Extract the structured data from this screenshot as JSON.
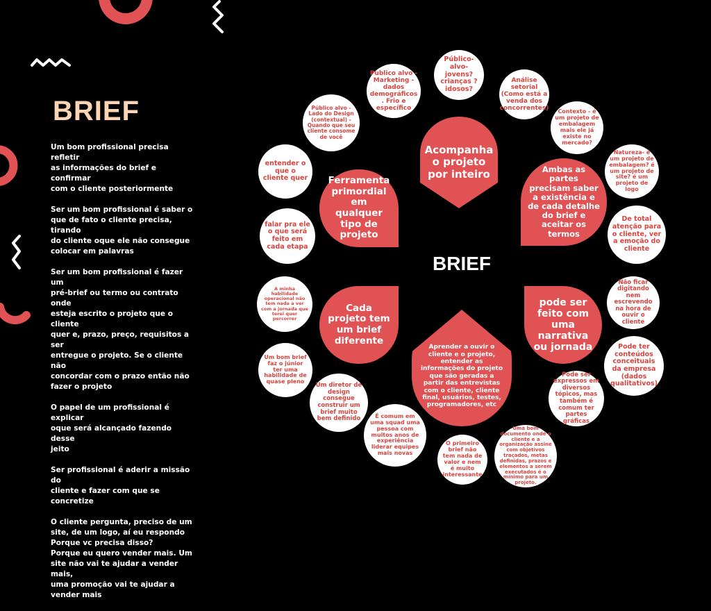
{
  "title": "BRIEF",
  "paragraphs": [
    "Um bom profissional precisa refletir\nas informações do brief e confirmar\ncom o cliente posteriormente",
    "Ser um bom profissional é saber o\nque de fato o cliente precisa, tirando\ndo cliente oque ele não consegue\ncolocar em palavras",
    "Ser um bom profissional é fazer um\npré-brief ou termo ou contrato onde\nesteja escrito o projeto que o cliente\nquer e, prazo, preço, requisitos a ser\nentregue o projeto. Se o cliente não\nconcordar com o prazo então não\nfazer o projeto",
    "O papel de um profissional é explicar\noque será alcançado fazendo desse\njeito",
    "Ser profissional é aderir a missão do\ncliente e fazer com que se concretize",
    "O cliente pergunta, preciso de um\nsite, de um logo, aí eu respondo\nPorque vc precisa disso?\nPorque eu quero vender mais. Um\nsite não vai te ajudar a vender mais,\numa promoção vai te ajudar a\nvender mais"
  ],
  "diagram": {
    "center": "BRIEF",
    "petals": [
      "Acompanha o projeto por inteiro",
      "Ambas as partes precisam saber a existência e de cada detalhe do brief e aceitar os termos",
      "pode ser feito com uma narrativa ou jornada",
      "Aprender a ouvir o cliente e o projeto, entender as informações do projeto que são geradas a partir das entrevistas com o cliente, cliente final, usuários, testes, programadores, etc",
      "Cada projeto tem um brief diferente",
      "Ferramenta primordial em qualquer tipo de projeto"
    ],
    "bubbles": [
      "Público-alvo-jovens? crianças ? idosos?",
      "Análise setorial (Como está a venda dos concorrentes)",
      "Contexto - é um projeto de embalagem mais ele já existe no mercado?",
      "Natureza- é um projeto de embalagem? é um projeto de site? é um projeto de logo",
      "De total atenção para o cliente, ver a emoção do cliente",
      "Não ficar digitando nem escrevendo na hora de ouvir o cliente",
      "Pode ter conteúdos conceituais da empresa (dados qualitativos)",
      "Pode ser expressos em diversos tópicos, mas também é comum ter partes gráficas",
      "Uma bom documento onde o cliente e a organização assine com objetivos traçados, metas definidas, prazos e elementos a serem executados é o mínimo para um projeto.",
      "O primeiro brief não tem nada de valor e nem é muito interessante",
      "É comum em uma squad uma pessoa com muitos anos de experiência liderar equipes mais novas",
      "Um diretor de design consegue construir um brief muito bem definido",
      "Um bom brief faz o júnior ter uma habilidade de quase pleno",
      "A minha habilidade operacional não tem nada a ver com a jornada que terei quer percorrer",
      "falar pra ele o que será feito em cada etapa",
      "entender o que o cliente quer",
      "Público alvo - Lado do Design (contextual) - Quando que seu cliente consome de você",
      "Publico alvo - Marketing - dados demográficos . Frio e específico"
    ]
  },
  "colors": {
    "accent": "#e05254",
    "title": "#fbd5b4",
    "background": "#000000"
  }
}
